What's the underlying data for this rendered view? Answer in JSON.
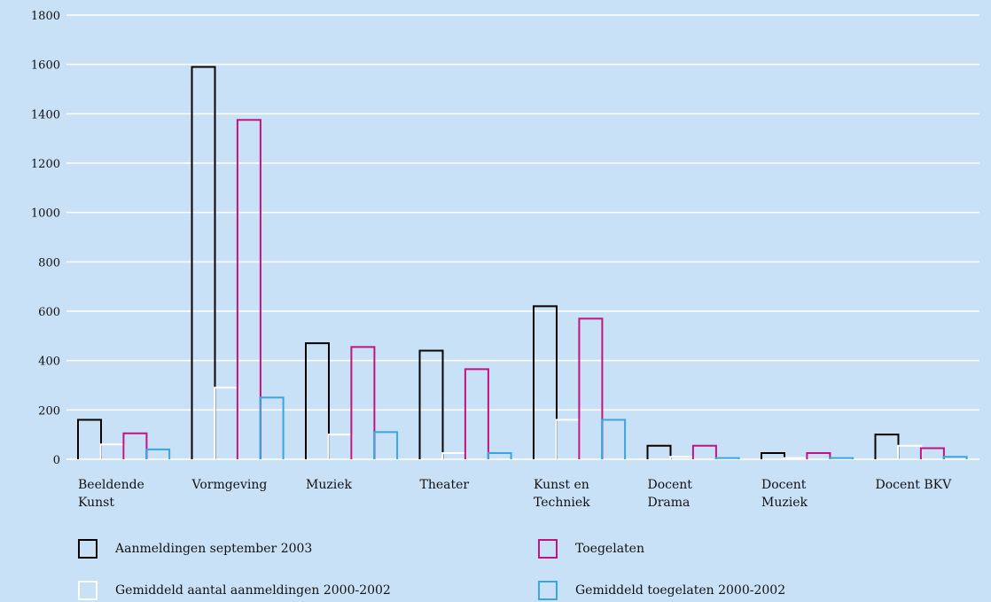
{
  "chart_data": {
    "type": "bar",
    "title": "",
    "xlabel": "",
    "ylabel": "",
    "ylim": [
      0,
      1800
    ],
    "yticks": [
      0,
      200,
      400,
      600,
      800,
      1000,
      1200,
      1400,
      1600,
      1800
    ],
    "grid": true,
    "legend_position": "bottom",
    "categories": [
      [
        "Beeldende",
        "Kunst"
      ],
      [
        "Vormgeving"
      ],
      [
        "Muziek"
      ],
      [
        "Theater"
      ],
      [
        "Kunst en",
        "Techniek"
      ],
      [
        "Docent",
        "Drama"
      ],
      [
        "Docent",
        "Muziek"
      ],
      [
        "Docent BKV"
      ]
    ],
    "series": [
      {
        "name": "Aanmeldingen september 2003",
        "color": "#000000",
        "values": [
          160,
          1590,
          470,
          440,
          620,
          55,
          25,
          100
        ]
      },
      {
        "name": "Gemiddeld aantal aanmeldingen 2000-2002",
        "color": "#ffffff",
        "values": [
          60,
          290,
          100,
          25,
          160,
          10,
          5,
          55
        ]
      },
      {
        "name": "Toegelaten",
        "color": "#c0157e",
        "values": [
          105,
          1375,
          455,
          365,
          570,
          55,
          25,
          45
        ]
      },
      {
        "name": "Gemiddeld toegelaten 2000-2002",
        "color": "#3aa5e0",
        "values": [
          40,
          250,
          110,
          25,
          160,
          5,
          5,
          10
        ]
      }
    ]
  }
}
